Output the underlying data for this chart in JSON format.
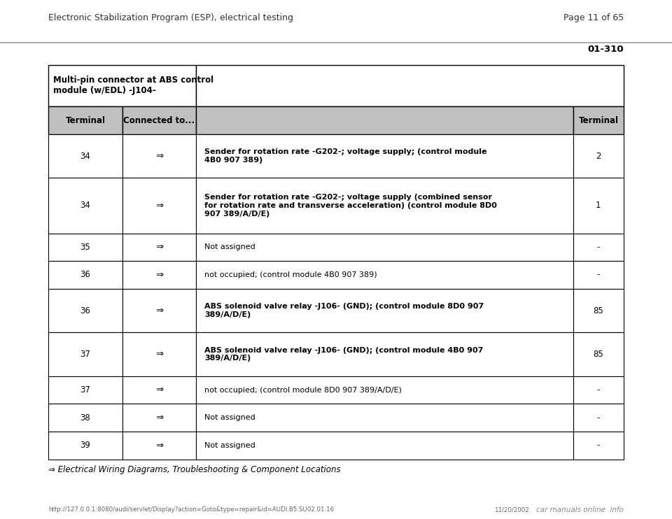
{
  "page_header_left": "Electronic Stabilization Program (ESP), electrical testing",
  "page_header_right": "Page 11 of 65",
  "page_code": "01-310",
  "table_header_merged": "Multi-pin connector at ABS control\nmodule (w/EDL) -J104-",
  "col_headers": [
    "Terminal",
    "Connected to...",
    "",
    "Terminal"
  ],
  "rows": [
    {
      "term_left": "34",
      "arrow": "⇒",
      "description": "Sender for rotation rate -G202-; voltage supply; (control module\n4B0 907 389)",
      "term_right": "2",
      "bold_desc": true
    },
    {
      "term_left": "34",
      "arrow": "⇒",
      "description": "Sender for rotation rate -G202-; voltage supply (combined sensor\nfor rotation rate and transverse acceleration) (control module 8D0\n907 389/A/D/E)",
      "term_right": "1",
      "bold_desc": true
    },
    {
      "term_left": "35",
      "arrow": "⇒",
      "description": "Not assigned",
      "term_right": "-",
      "bold_desc": false
    },
    {
      "term_left": "36",
      "arrow": "⇒",
      "description": "not occupied; (control module 4B0 907 389)",
      "term_right": "-",
      "bold_desc": false
    },
    {
      "term_left": "36",
      "arrow": "⇒",
      "description": "ABS solenoid valve relay -J106- (GND); (control module 8D0 907\n389/A/D/E)",
      "term_right": "85",
      "bold_desc": true
    },
    {
      "term_left": "37",
      "arrow": "⇒",
      "description": "ABS solenoid valve relay -J106- (GND); (control module 4B0 907\n389/A/D/E)",
      "term_right": "85",
      "bold_desc": true
    },
    {
      "term_left": "37",
      "arrow": "⇒",
      "description": "not occupied; (control module 8D0 907 389/A/D/E)",
      "term_right": "-",
      "bold_desc": false
    },
    {
      "term_left": "38",
      "arrow": "⇒",
      "description": "Not assigned",
      "term_right": "-",
      "bold_desc": false
    },
    {
      "term_left": "39",
      "arrow": "⇒",
      "description": "Not assigned",
      "term_right": "-",
      "bold_desc": false
    }
  ],
  "footer_note": "⇒ Electrical Wiring Diagrams, Troubleshooting & Component Locations",
  "footer_url": "http://127.0.0.1:8080/audi/servlet/Display?action=Goto&type=repair&id=AUDI.B5.SU02.01.16",
  "footer_date": "11/20/2002",
  "footer_brand": "car manuals online .info",
  "bg_color": "#ffffff",
  "border_color": "#000000",
  "col_header_bg": "#c0c0c0"
}
